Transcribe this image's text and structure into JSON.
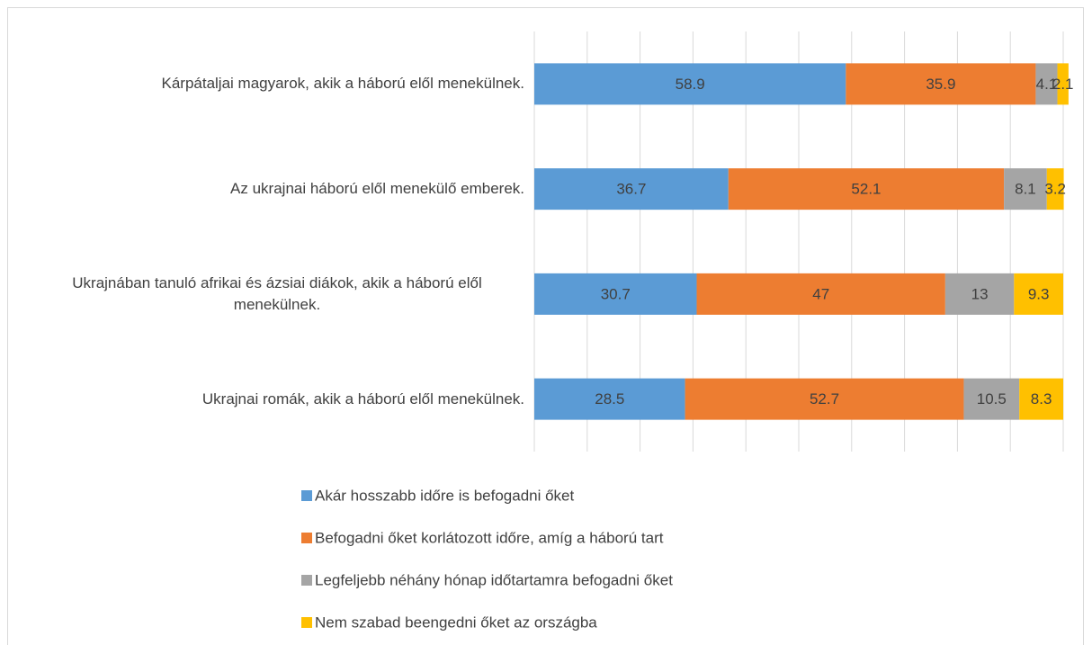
{
  "chart_data": {
    "type": "stacked-barh",
    "categories": [
      "Kárpátaljai magyarok, akik a háború elől menekülnek.",
      "Az ukrajnai háború elől menekülő emberek.",
      "Ukrajnában tanuló afrikai és ázsiai diákok, akik a háború elől menekülnek.",
      "Ukrajnai romák, akik a háború elől menekülnek."
    ],
    "series": [
      {
        "name": "Akár hosszabb időre is befogadni őket",
        "color": "#5b9bd5",
        "values": [
          58.9,
          36.7,
          30.7,
          28.5
        ]
      },
      {
        "name": "Befogadni őket korlátozott időre, amíg a háború tart",
        "color": "#ed7d31",
        "values": [
          35.9,
          52.1,
          47,
          52.7
        ]
      },
      {
        "name": "Legfeljebb néhány hónap időtartamra befogadni őket",
        "color": "#a5a5a5",
        "values": [
          4.1,
          8.1,
          13,
          10.5
        ]
      },
      {
        "name": "Nem szabad beengedni őket az országba",
        "color": "#ffc000",
        "values": [
          2.1,
          3.2,
          9.3,
          8.3
        ]
      }
    ],
    "xlim": [
      0,
      100
    ],
    "xticks": [
      0,
      10,
      20,
      30,
      40,
      50,
      60,
      70,
      80,
      90,
      100
    ],
    "grid": true,
    "legend": "bottom"
  }
}
